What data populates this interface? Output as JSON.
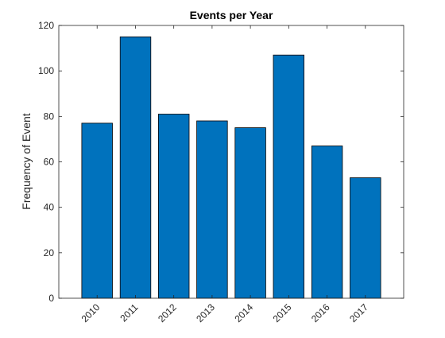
{
  "chart_data": {
    "type": "bar",
    "title": "Events per Year",
    "xlabel": "",
    "ylabel": "Frequency of Event",
    "categories": [
      "2010",
      "2011",
      "2012",
      "2013",
      "2014",
      "2015",
      "2016",
      "2017"
    ],
    "values": [
      77,
      115,
      81,
      78,
      75,
      107,
      67,
      53
    ],
    "ylim": [
      0,
      120
    ],
    "yticks": [
      0,
      20,
      40,
      60,
      80,
      100,
      120
    ],
    "grid": false,
    "bar_color": "#0072BD",
    "edge_color": "#000000"
  }
}
